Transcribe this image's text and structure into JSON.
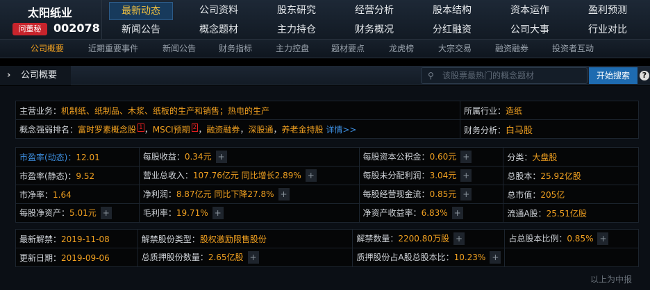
{
  "stock": {
    "name": "太阳纸业",
    "code": "002078",
    "badge": "问董秘"
  },
  "nav": [
    "最新动态",
    "公司资料",
    "股东研究",
    "经营分析",
    "股本结构",
    "资本运作",
    "盈利预测",
    "新闻公告",
    "概念题材",
    "主力持仓",
    "财务概况",
    "分红融资",
    "公司大事",
    "行业对比"
  ],
  "subnav": [
    "公司概要",
    "近期重要事件",
    "新闻公告",
    "财务指标",
    "主力控盘",
    "题材要点",
    "龙虎榜",
    "大宗交易",
    "融资融券",
    "投资者互动"
  ],
  "panel": {
    "title": "公司概要",
    "search_placeholder": "该股票最热门的概念题材",
    "search_button": "开始搜索"
  },
  "info": {
    "main_business_label": "主营业务：",
    "main_business": "机制纸、纸制品、木浆、纸板的生产和销售；热电的生产",
    "industry_label": "所属行业：",
    "industry": "造纸",
    "concept_label": "概念强弱排名：",
    "concepts": [
      "富时罗素概念股",
      "MSCI预期",
      "融资融券",
      "深股通",
      "养老金持股"
    ],
    "concept_marks": [
      "1",
      "2"
    ],
    "details": "详情>>",
    "fin_label": "财务分析：",
    "fin": "白马股"
  },
  "metrics": [
    [
      [
        "市盈率(动态)：",
        "12.01",
        false
      ],
      [
        "每股收益：",
        "0.34元",
        true
      ],
      [
        "每股资本公积金：",
        "0.60元",
        true
      ],
      [
        "分类：",
        "大盘股",
        false
      ]
    ],
    [
      [
        "市盈率(静态)：",
        "9.52",
        false
      ],
      [
        "营业总收入：",
        "107.76亿元 同比增长2.89%",
        true
      ],
      [
        "每股未分配利润：",
        "3.04元",
        true
      ],
      [
        "总股本：",
        "25.92亿股",
        false
      ]
    ],
    [
      [
        "市净率：",
        "1.64",
        false
      ],
      [
        "净利润：",
        "8.87亿元 同比下降27.8%",
        true
      ],
      [
        "每股经营现金流：",
        "0.85元",
        true
      ],
      [
        "总市值：",
        "205亿",
        false
      ]
    ],
    [
      [
        "每股净资产：",
        "5.01元",
        true
      ],
      [
        "毛利率：",
        "19.71%",
        true
      ],
      [
        "净资产收益率：",
        "6.83%",
        true
      ],
      [
        "流通A股：",
        "25.51亿股",
        false
      ]
    ]
  ],
  "unlock": [
    [
      [
        "最新解禁：",
        "2019-11-08",
        false
      ],
      [
        "解禁股份类型：",
        "股权激励限售股份",
        false
      ],
      [
        "解禁数量：",
        "2200.80万股",
        true
      ],
      [
        "占总股本比例：",
        "0.85%",
        true
      ]
    ],
    [
      [
        "更新日期：",
        "2019-09-06",
        false
      ],
      [
        "总质押股份数量：",
        "2.65亿股",
        true
      ],
      [
        "质押股份占A股总股本比：",
        "10.23%",
        true
      ],
      [
        "",
        "",
        " "
      ]
    ]
  ],
  "footer": "以上为中报"
}
